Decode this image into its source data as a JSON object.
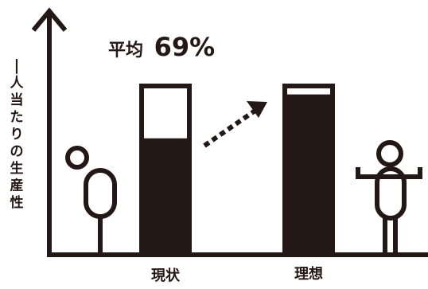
{
  "chart_data": {
    "type": "bar",
    "categories": [
      "現状",
      "理想"
    ],
    "values": [
      69,
      95
    ],
    "ylim": [
      0,
      100
    ],
    "ylabel": "一人当たりの生産性",
    "annotation": "平均",
    "annotation_value": "69%",
    "grid": false,
    "legend": "none",
    "colors": {
      "ink": "#231815",
      "fill": "#231815",
      "background": "#ffffff"
    }
  },
  "icons": [
    "person-icon",
    "person-arms-raised-icon",
    "dotted-arrow-icon"
  ]
}
